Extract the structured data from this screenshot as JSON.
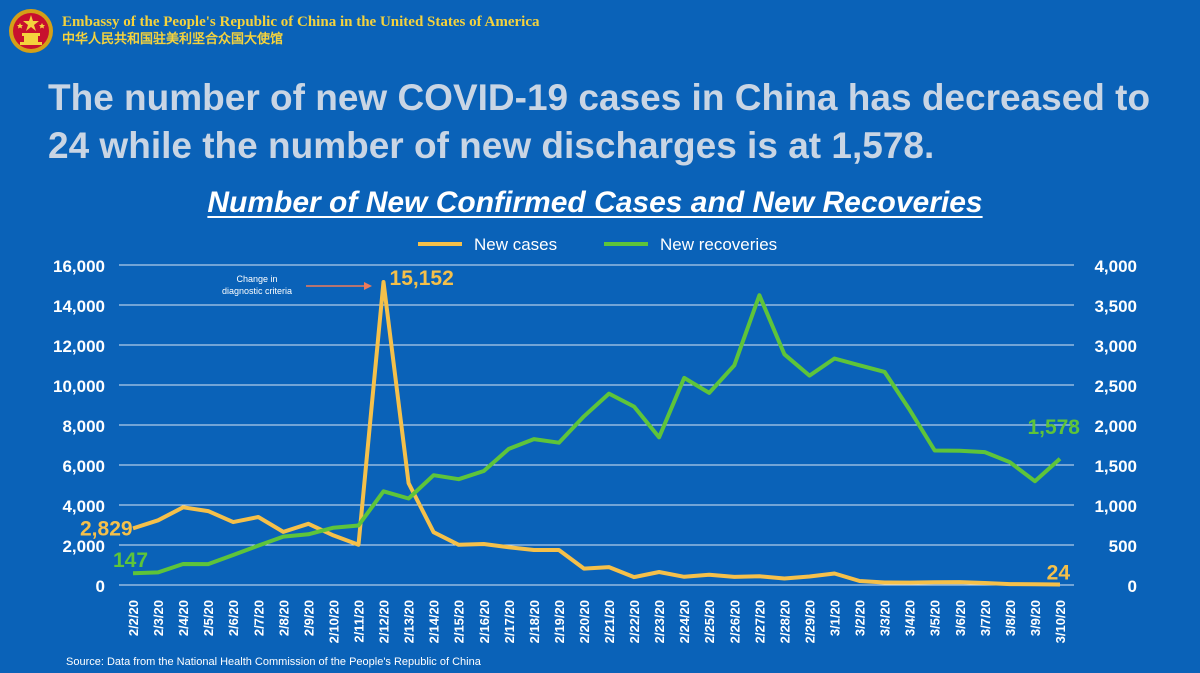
{
  "header": {
    "embassy_name_en": "Embassy of the People's Republic of China in the United States of America",
    "embassy_name_zh": "中华人民共和国驻美利坚合众国大使馆"
  },
  "headline": "The number of new COVID-19 cases in China has decreased to 24 while the number of new discharges is at 1,578.",
  "chart_data": {
    "type": "line",
    "title": "Number of New Confirmed Cases and New Recoveries",
    "categories": [
      "2/2/20",
      "2/3/20",
      "2/4/20",
      "2/5/20",
      "2/6/20",
      "2/7/20",
      "2/8/20",
      "2/9/20",
      "2/10/20",
      "2/11/20",
      "2/12/20",
      "2/13/20",
      "2/14/20",
      "2/15/20",
      "2/16/20",
      "2/17/20",
      "2/18/20",
      "2/19/20",
      "2/20/20",
      "2/21/20",
      "2/22/20",
      "2/23/20",
      "2/24/20",
      "2/25/20",
      "2/26/20",
      "2/27/20",
      "2/28/20",
      "2/29/20",
      "3/1/20",
      "3/2/20",
      "3/3/20",
      "3/4/20",
      "3/5/20",
      "3/6/20",
      "3/7/20",
      "3/8/20",
      "3/9/20",
      "3/10/20"
    ],
    "series": [
      {
        "name": "New cases",
        "axis": "left",
        "color": "#f5c04a",
        "values": [
          2829,
          3235,
          3887,
          3694,
          3143,
          3399,
          2656,
          3062,
          2478,
          2015,
          15152,
          5090,
          2641,
          2009,
          2048,
          1886,
          1749,
          1749,
          820,
          894,
          397,
          648,
          409,
          508,
          406,
          433,
          327,
          427,
          573,
          202,
          125,
          119,
          139,
          143,
          99,
          44,
          40,
          24
        ]
      },
      {
        "name": "New recoveries",
        "axis": "right",
        "color": "#5ec43a",
        "values": [
          147,
          157,
          262,
          261,
          375,
          492,
          605,
          634,
          716,
          744,
          1171,
          1081,
          1373,
          1323,
          1425,
          1701,
          1824,
          1779,
          2109,
          2393,
          2230,
          1846,
          2589,
          2401,
          2746,
          3622,
          2884,
          2618,
          2831,
          2746,
          2664,
          2189,
          1681,
          1678,
          1661,
          1535,
          1297,
          1578
        ]
      }
    ],
    "y_left": {
      "min": 0,
      "max": 16000,
      "ticks": [
        "0",
        "2,000",
        "4,000",
        "6,000",
        "8,000",
        "10,000",
        "12,000",
        "14,000",
        "16,000"
      ]
    },
    "y_right": {
      "min": 0,
      "max": 4000,
      "ticks": [
        "0",
        "500",
        "1,000",
        "1,500",
        "2,000",
        "2,500",
        "3,000",
        "3,500",
        "4,000"
      ]
    },
    "grid": true,
    "legend": "top-center",
    "annotations": [
      {
        "text": "2,829",
        "series": 0,
        "index": 0,
        "color": "#f5c04a"
      },
      {
        "text": "147",
        "series": 1,
        "index": 0,
        "color": "#5ec43a"
      },
      {
        "text": "15,152",
        "series": 0,
        "index": 10,
        "color": "#f5c04a"
      },
      {
        "text": "1,578",
        "series": 1,
        "index": 37,
        "color": "#5ec43a"
      },
      {
        "text": "24",
        "series": 0,
        "index": 37,
        "color": "#f5c04a"
      }
    ],
    "note": {
      "text": [
        "Change in",
        "diagnostic criteria"
      ],
      "arrow_color": "#f07a5a"
    }
  },
  "source": "Source: Data from the National Health Commission of the People's Republic of China"
}
